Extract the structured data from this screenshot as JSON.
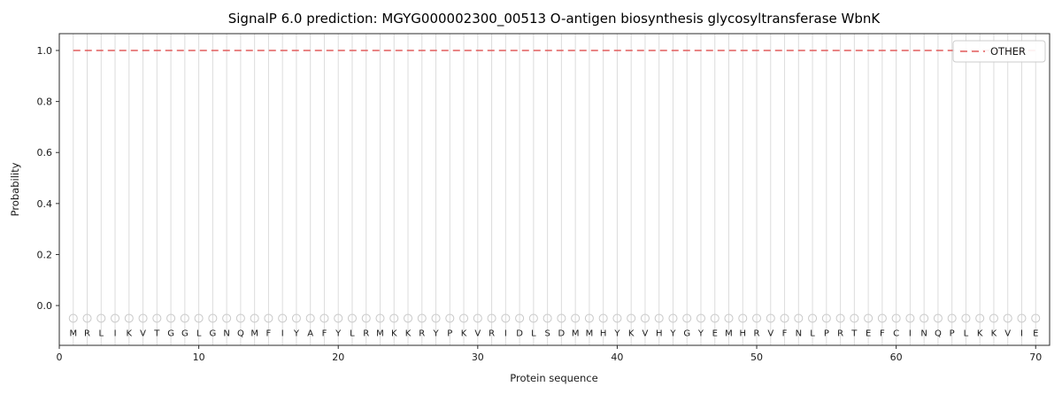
{
  "colors": {
    "line": "#e25d5d",
    "grid": "#dcdcdc",
    "spine": "#2b2b2b",
    "marker": "#c9c9c9",
    "text": "#1a1a1a",
    "legend_border": "#cccccc",
    "background": "#ffffff"
  },
  "chart_data": {
    "type": "line",
    "title": "SignalP 6.0 prediction: MGYG000002300_00513 O-antigen biosynthesis glycosyltransferase WbnK",
    "xlabel": "Protein sequence",
    "ylabel": "Probability",
    "xlim": [
      0,
      71
    ],
    "ylim": [
      -0.156,
      1.066
    ],
    "xticks": [
      0,
      10,
      20,
      30,
      40,
      50,
      60,
      70
    ],
    "yticks": [
      0.0,
      0.2,
      0.4,
      0.6,
      0.8,
      1.0
    ],
    "grid": true,
    "legend_position": "upper right",
    "legend": [
      {
        "label": "OTHER",
        "style": "dashed",
        "color": "#e25d5d"
      }
    ],
    "series": [
      {
        "name": "OTHER",
        "style": "dashed",
        "color": "#e25d5d",
        "y": 1.0,
        "x_start": 1,
        "x_end": 70
      }
    ],
    "marker_y": -0.05,
    "sequence": [
      "M",
      "R",
      "L",
      "I",
      "K",
      "V",
      "T",
      "G",
      "G",
      "L",
      "G",
      "N",
      "Q",
      "M",
      "F",
      "I",
      "Y",
      "A",
      "F",
      "Y",
      "L",
      "R",
      "M",
      "K",
      "K",
      "R",
      "Y",
      "P",
      "K",
      "V",
      "R",
      "I",
      "D",
      "L",
      "S",
      "D",
      "M",
      "M",
      "H",
      "Y",
      "K",
      "V",
      "H",
      "Y",
      "G",
      "Y",
      "E",
      "M",
      "H",
      "R",
      "V",
      "F",
      "N",
      "L",
      "P",
      "R",
      "T",
      "E",
      "F",
      "C",
      "I",
      "N",
      "Q",
      "P",
      "L",
      "K",
      "K",
      "V",
      "I",
      "E"
    ]
  }
}
